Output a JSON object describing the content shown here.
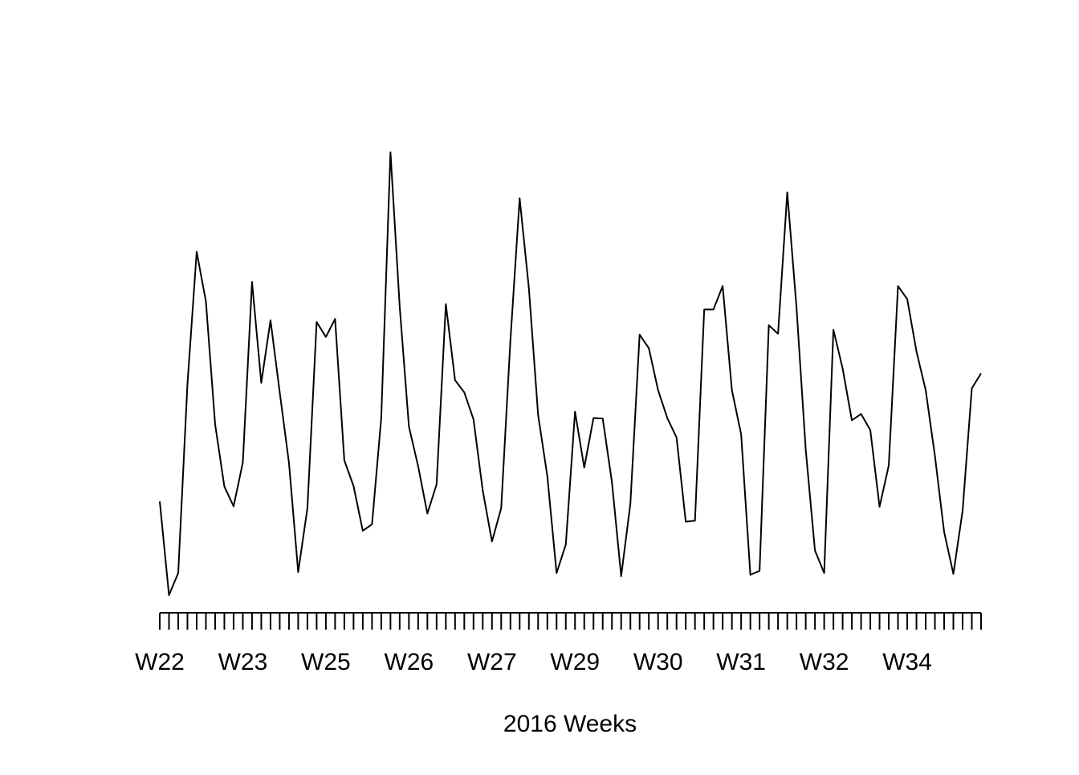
{
  "chart_data": {
    "type": "line",
    "title": "",
    "xlabel": "2016 Weeks",
    "ylabel": "",
    "grid": false,
    "legend": "none",
    "line_color": "#000000",
    "x_tick_count": 90,
    "x_tick_labels": [
      {
        "index": 0,
        "label": "W22"
      },
      {
        "index": 9,
        "label": "W23"
      },
      {
        "index": 18,
        "label": "W25"
      },
      {
        "index": 27,
        "label": "W26"
      },
      {
        "index": 36,
        "label": "W27"
      },
      {
        "index": 45,
        "label": "W29"
      },
      {
        "index": 54,
        "label": "W30"
      },
      {
        "index": 63,
        "label": "W31"
      },
      {
        "index": 72,
        "label": "W32"
      },
      {
        "index": 81,
        "label": "W34"
      }
    ],
    "ylim": [
      0,
      100
    ],
    "series": [
      {
        "values": [
          20.8,
          0.0,
          4.9,
          46.8,
          76.2,
          65.2,
          37.9,
          24.1,
          19.7,
          29.4,
          69.5,
          47.1,
          61.0,
          45.0,
          29.4,
          5.1,
          19.3,
          60.6,
          57.3,
          61.3,
          29.9,
          24.2,
          14.3,
          15.7,
          39.3,
          98.3,
          64.1,
          37.4,
          28.6,
          18.1,
          24.6,
          64.6,
          47.7,
          45.0,
          39.0,
          23.2,
          11.9,
          19.3,
          56.6,
          88.1,
          68.1,
          40.0,
          26.4,
          4.9,
          11.2,
          40.7,
          28.3,
          39.3,
          39.2,
          25.1,
          4.2,
          20.3,
          57.8,
          54.8,
          45.5,
          39.3,
          35.0,
          16.3,
          16.5,
          63.4,
          63.4,
          68.6,
          45.5,
          35.7,
          4.5,
          5.4,
          59.9,
          58.0,
          89.4,
          63.9,
          32.3,
          9.9,
          4.9,
          58.9,
          50.3,
          38.8,
          40.2,
          36.6,
          19.6,
          28.8,
          68.6,
          65.7,
          54.1,
          45.5,
          30.9,
          14.0,
          4.7,
          18.7,
          45.9,
          49.2
        ]
      }
    ]
  }
}
